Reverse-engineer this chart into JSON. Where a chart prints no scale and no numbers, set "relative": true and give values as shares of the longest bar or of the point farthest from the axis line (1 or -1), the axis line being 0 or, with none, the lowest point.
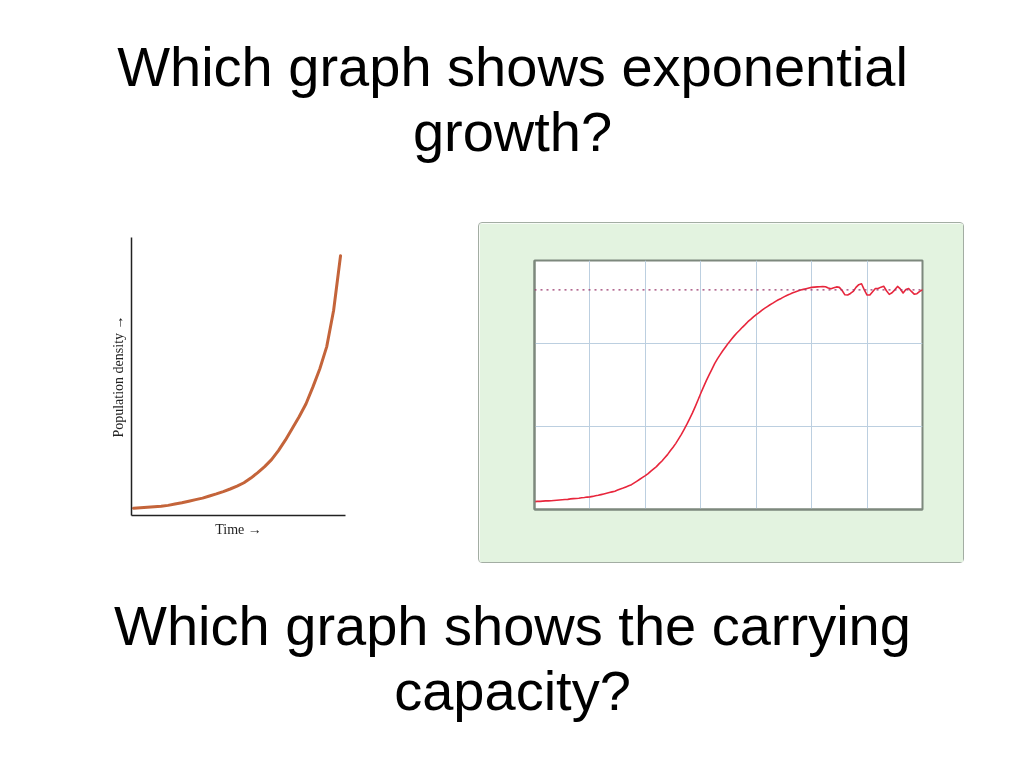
{
  "chart_data": [
    {
      "type": "line",
      "title": "Which graph shows exponential growth?",
      "xlabel": "Time →",
      "ylabel": "Population density →",
      "relative": true,
      "color": "#c4643a",
      "categories": [
        null,
        null,
        null,
        null,
        null,
        null,
        null,
        null,
        null,
        null,
        null,
        null,
        null,
        null,
        null,
        null,
        null,
        null,
        null,
        null,
        null,
        null,
        null,
        null,
        null,
        null,
        null,
        null,
        null,
        null,
        null
      ],
      "values": [
        0.028,
        0.03,
        0.032,
        0.034,
        0.036,
        0.039,
        0.044,
        0.049,
        0.055,
        0.061,
        0.067,
        0.075,
        0.083,
        0.092,
        0.102,
        0.113,
        0.126,
        0.144,
        0.165,
        0.188,
        0.215,
        0.25,
        0.29,
        0.335,
        0.38,
        0.43,
        0.495,
        0.565,
        0.65,
        0.79,
        1
      ]
    },
    {
      "type": "line",
      "title": "Which graph shows the carrying capacity?",
      "relative": true,
      "grid": true,
      "color": "#e8263c",
      "categories": [
        null,
        null,
        null,
        null,
        null,
        null,
        null,
        null,
        null,
        null,
        null,
        null,
        null,
        null,
        null,
        null,
        null,
        null,
        null,
        null,
        null,
        null,
        null,
        null,
        null,
        null,
        null,
        null,
        null,
        null,
        null,
        null,
        null,
        null,
        null,
        null,
        null,
        null,
        null,
        null,
        null,
        null,
        null,
        null,
        null,
        null,
        null,
        null,
        null,
        null,
        null,
        null,
        null,
        null,
        null,
        null,
        null,
        null,
        null,
        null,
        null,
        null,
        null,
        null,
        null,
        null,
        null,
        null,
        null,
        null,
        null,
        null,
        null,
        null,
        null,
        null,
        null,
        null,
        null,
        null,
        null,
        null,
        null,
        null,
        null,
        null,
        null,
        null,
        null,
        null,
        null,
        null,
        null,
        null,
        null,
        null,
        null,
        null,
        null,
        null,
        null,
        null,
        null,
        null,
        null,
        null,
        null,
        null,
        null,
        null,
        null,
        null,
        null,
        null,
        null,
        null,
        null,
        null,
        null,
        null,
        null,
        null,
        null,
        null,
        null,
        null,
        null,
        null,
        null,
        null,
        null,
        null,
        null,
        null,
        null,
        null,
        null,
        null,
        null,
        null,
        null
      ],
      "values": [
        0.035,
        0.036,
        0.036,
        0.037,
        0.038,
        0.038,
        0.039,
        0.04,
        0.041,
        0.042,
        0.043,
        0.044,
        0.045,
        0.047,
        0.048,
        0.049,
        0.05,
        0.052,
        0.053,
        0.055,
        0.056,
        0.058,
        0.061,
        0.063,
        0.066,
        0.069,
        0.072,
        0.075,
        0.078,
        0.081,
        0.086,
        0.091,
        0.095,
        0.1,
        0.105,
        0.11,
        0.118,
        0.126,
        0.134,
        0.142,
        0.15,
        0.159,
        0.17,
        0.18,
        0.19,
        0.203,
        0.215,
        0.229,
        0.243,
        0.26,
        0.276,
        0.293,
        0.313,
        0.333,
        0.355,
        0.378,
        0.403,
        0.428,
        0.456,
        0.485,
        0.515,
        0.543,
        0.571,
        0.596,
        0.621,
        0.646,
        0.667,
        0.686,
        0.704,
        0.721,
        0.738,
        0.753,
        0.768,
        0.782,
        0.794,
        0.807,
        0.819,
        0.832,
        0.842,
        0.853,
        0.863,
        0.872,
        0.882,
        0.891,
        0.899,
        0.907,
        0.914,
        0.922,
        0.929,
        0.935,
        0.942,
        0.948,
        0.953,
        0.959,
        0.963,
        0.968,
        0.972,
        0.975,
        0.978,
        0.981,
        0.984,
        0.985,
        0.986,
        0.987,
        0.988,
        0.987,
        0.981,
        0.978,
        0.982,
        0.986,
        0.984,
        0.97,
        0.951,
        0.95,
        0.957,
        0.966,
        0.984,
        0.996,
        1,
        0.973,
        0.95,
        0.95,
        0.965,
        0.979,
        0.979,
        0.985,
        0.989,
        0.969,
        0.953,
        0.96,
        0.973,
        0.988,
        0.977,
        0.959,
        0.975,
        0.979,
        0.966,
        0.954,
        0.956,
        0.966,
        0.973
      ],
      "ref_lines": [
        {
          "axis": "y",
          "value": 0.973,
          "color": "#9b3a6e",
          "line_style": "dotted"
        }
      ]
    }
  ]
}
